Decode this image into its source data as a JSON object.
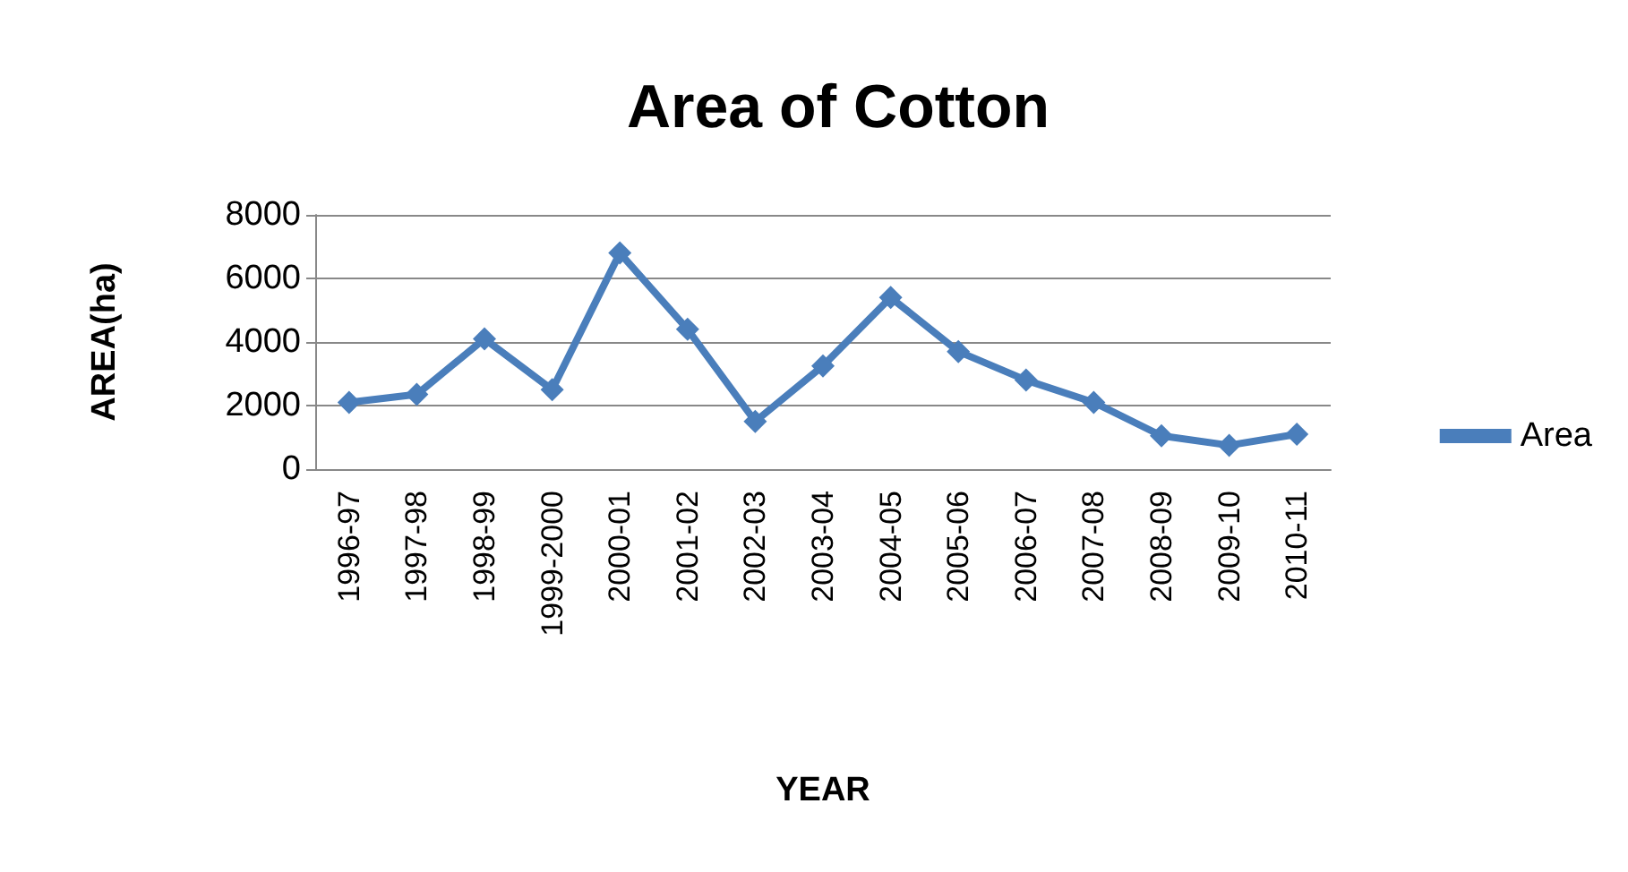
{
  "chart_data": {
    "type": "line",
    "title": "Area of Cotton",
    "xlabel": "YEAR",
    "ylabel": "AREA(ha)",
    "categories": [
      "1996-97",
      "1997-98",
      "1998-99",
      "1999-2000",
      "2000-01",
      "2001-02",
      "2002-03",
      "2003-04",
      "2004-05",
      "2005-06",
      "2006-07",
      "2007-08",
      "2008-09",
      "2009-10",
      "2010-11"
    ],
    "series": [
      {
        "name": "Area",
        "color": "#4a7ebb",
        "values": [
          2100,
          2350,
          4100,
          2500,
          6800,
          4400,
          1500,
          3250,
          5400,
          3700,
          2800,
          2100,
          1050,
          750,
          1100
        ]
      }
    ],
    "ylim": [
      0,
      8000
    ],
    "yticks": [
      0,
      2000,
      4000,
      6000,
      8000
    ],
    "grid": "y",
    "legend": "right",
    "marker": "diamond",
    "line_style": "solid"
  }
}
